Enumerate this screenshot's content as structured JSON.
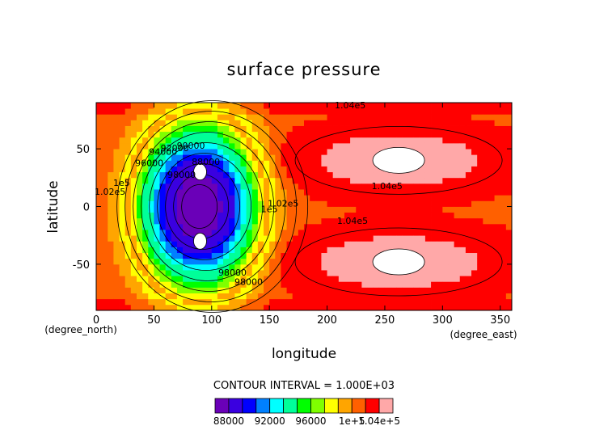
{
  "chart_data": {
    "type": "heatmap",
    "title": "surface pressure",
    "xlabel": "longitude",
    "ylabel": "latitude",
    "x_unit": "(degree_east)",
    "y_unit": "(degree_north)",
    "xlim": [
      0,
      360
    ],
    "ylim": [
      -90,
      90
    ],
    "x_ticks": [
      0,
      50,
      100,
      150,
      200,
      250,
      300,
      350
    ],
    "y_ticks": [
      -50,
      0,
      50
    ],
    "contour_interval_text": "CONTOUR INTERVAL = 1.000E+03",
    "levels": [
      86000,
      87000,
      88000,
      89000,
      90000,
      91000,
      92000,
      93000,
      94000,
      95000,
      96000,
      97000,
      98000,
      99000,
      100000,
      101000,
      102000,
      103000,
      104000,
      105000
    ],
    "colorbar_labels": [
      "88000",
      "92000",
      "96000",
      "1e+5",
      "1.04e+5"
    ],
    "colors": [
      "#6a00b8",
      "#3a00e0",
      "#0000ff",
      "#0080ff",
      "#00ffff",
      "#00ff99",
      "#00ff00",
      "#7fff00",
      "#ffff00",
      "#ffa500",
      "#ff6000",
      "#ff0000",
      "#ffa8a8"
    ],
    "fields": {
      "low_center": [
        88,
        0
      ],
      "low_min_value": 86500,
      "high_centers": [
        [
          262,
          40
        ],
        [
          262,
          -48
        ]
      ],
      "high_max_value": 104800
    },
    "contour_labels": [
      "1.04e5",
      "1.04e5",
      "1.04e5",
      "98000",
      "98000",
      "96000",
      "94000",
      "92000",
      "90000",
      "88000",
      "1e5",
      "1.02e5",
      "1e5",
      "1.02e5",
      "98000"
    ]
  }
}
